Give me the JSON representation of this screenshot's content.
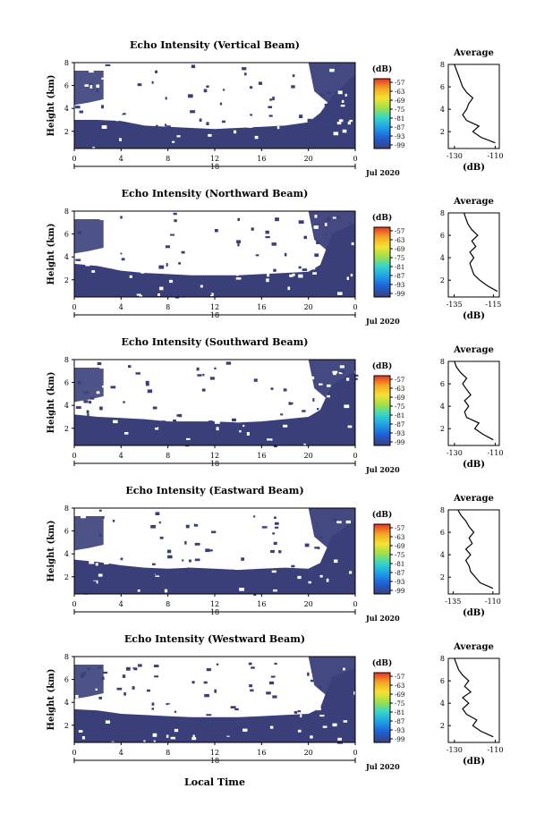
{
  "figure": {
    "xlabel": "Local Time",
    "date_label": "Jul 2020",
    "colorbar_unit": "(dB)",
    "colorbar_ticks": [
      "-57",
      "-63",
      "-69",
      "-75",
      "-81",
      "-87",
      "-93",
      "-99"
    ],
    "profile_title": "Average",
    "profile_xlabel": "(dB)",
    "colors": {
      "fill": "#3a3f7a",
      "colorbar": [
        "#e8322a",
        "#f5a623",
        "#f5e232",
        "#9fe04a",
        "#35d6c8",
        "#1fa1e8",
        "#1f5fd6",
        "#3a3f7a"
      ]
    }
  },
  "chart_data": [
    {
      "type": "heatmap",
      "title": "Echo Intensity (Vertical Beam)",
      "ylabel": "Height (km)",
      "x_ticks": [
        "0",
        "4",
        "8",
        "12",
        "16",
        "20",
        "0"
      ],
      "day_label": "18",
      "y_ticks": [
        "2",
        "4",
        "6",
        "8"
      ],
      "xlim": [
        0,
        24
      ],
      "ylim": [
        0.5,
        8
      ],
      "boundary": {
        "time": [
          0,
          2,
          4,
          6,
          8,
          10,
          12,
          14,
          16,
          18,
          20,
          21,
          22,
          24
        ],
        "height": [
          3.0,
          3.0,
          2.9,
          2.5,
          2.4,
          2.3,
          2.2,
          2.3,
          2.4,
          2.5,
          2.8,
          3.6,
          5.0,
          7.0
        ]
      },
      "profile": {
        "xticks": [
          "-130",
          "-110"
        ],
        "xlim": [
          -133,
          -108
        ],
        "height": [
          1.0,
          1.5,
          2.0,
          2.5,
          3.0,
          3.5,
          4.0,
          4.5,
          5.0,
          5.5,
          6.0,
          6.5,
          7.0,
          7.5,
          8.0
        ],
        "value": [
          -110,
          -117,
          -121,
          -118,
          -124,
          -126,
          -124,
          -123,
          -121,
          -124,
          -126,
          -127,
          -128,
          -129,
          -130
        ]
      }
    },
    {
      "type": "heatmap",
      "title": "Echo Intensity (Northward Beam)",
      "ylabel": "Height (km)",
      "x_ticks": [
        "0",
        "4",
        "8",
        "12",
        "16",
        "20",
        "0"
      ],
      "day_label": "18",
      "y_ticks": [
        "2",
        "4",
        "6",
        "8"
      ],
      "xlim": [
        0,
        24
      ],
      "ylim": [
        0.5,
        8
      ],
      "boundary": {
        "time": [
          0,
          2,
          4,
          6,
          8,
          10,
          12,
          14,
          16,
          18,
          20,
          21,
          22,
          24
        ],
        "height": [
          3.4,
          3.2,
          2.8,
          2.6,
          2.5,
          2.4,
          2.4,
          2.4,
          2.5,
          2.6,
          2.7,
          3.3,
          6.0,
          7.0
        ]
      },
      "profile": {
        "xticks": [
          "-135",
          "-115"
        ],
        "xlim": [
          -138,
          -112
        ],
        "height": [
          1.0,
          1.5,
          2.0,
          2.5,
          3.0,
          3.5,
          4.0,
          4.5,
          5.0,
          5.5,
          6.0,
          6.5,
          7.0,
          7.5,
          8.0
        ],
        "value": [
          -113,
          -118,
          -122,
          -125,
          -126,
          -127,
          -125,
          -127,
          -124,
          -126,
          -123,
          -126,
          -128,
          -129,
          -130
        ]
      }
    },
    {
      "type": "heatmap",
      "title": "Echo Intensity (Southward Beam)",
      "ylabel": "Height (km)",
      "x_ticks": [
        "0",
        "4",
        "8",
        "12",
        "16",
        "20",
        "0"
      ],
      "day_label": "18",
      "y_ticks": [
        "2",
        "4",
        "6",
        "8"
      ],
      "xlim": [
        0,
        24
      ],
      "ylim": [
        0.5,
        8
      ],
      "boundary": {
        "time": [
          0,
          2,
          4,
          6,
          8,
          10,
          12,
          14,
          16,
          18,
          20,
          21,
          22,
          24
        ],
        "height": [
          3.2,
          3.0,
          2.9,
          2.8,
          2.6,
          2.6,
          2.6,
          2.5,
          2.6,
          2.8,
          3.0,
          3.6,
          5.8,
          7.0
        ]
      },
      "profile": {
        "xticks": [
          "-130",
          "-110"
        ],
        "xlim": [
          -133,
          -108
        ],
        "height": [
          1.0,
          1.5,
          2.0,
          2.5,
          3.0,
          3.5,
          4.0,
          4.5,
          5.0,
          5.5,
          6.0,
          6.5,
          7.0,
          7.5,
          8.0
        ],
        "value": [
          -111,
          -116,
          -120,
          -118,
          -124,
          -125,
          -123,
          -125,
          -122,
          -124,
          -126,
          -124,
          -127,
          -129,
          -130
        ]
      }
    },
    {
      "type": "heatmap",
      "title": "Echo Intensity (Eastward Beam)",
      "ylabel": "Height (km)",
      "x_ticks": [
        "0",
        "4",
        "8",
        "12",
        "16",
        "20",
        "0"
      ],
      "day_label": "18",
      "y_ticks": [
        "2",
        "4",
        "6",
        "8"
      ],
      "xlim": [
        0,
        24
      ],
      "ylim": [
        0.5,
        8
      ],
      "boundary": {
        "time": [
          0,
          2,
          4,
          6,
          8,
          10,
          12,
          14,
          16,
          18,
          20,
          21,
          22,
          24
        ],
        "height": [
          3.5,
          3.3,
          3.0,
          2.8,
          2.7,
          2.8,
          2.7,
          2.6,
          2.7,
          2.8,
          2.7,
          3.2,
          5.5,
          7.0
        ]
      },
      "profile": {
        "xticks": [
          "-135",
          "-110"
        ],
        "xlim": [
          -138,
          -106
        ],
        "height": [
          1.0,
          1.5,
          2.0,
          2.5,
          3.0,
          3.5,
          4.0,
          4.5,
          5.0,
          5.5,
          6.0,
          6.5,
          7.0,
          7.5,
          8.0
        ],
        "value": [
          -110,
          -118,
          -121,
          -124,
          -125,
          -127,
          -124,
          -127,
          -123,
          -125,
          -122,
          -125,
          -127,
          -130,
          -132
        ]
      }
    },
    {
      "type": "heatmap",
      "title": "Echo Intensity (Westward Beam)",
      "ylabel": "Height (km)",
      "x_ticks": [
        "0",
        "4",
        "8",
        "12",
        "16",
        "20",
        "0"
      ],
      "day_label": "18",
      "y_ticks": [
        "2",
        "4",
        "6",
        "8"
      ],
      "xlim": [
        0,
        24
      ],
      "ylim": [
        0.5,
        8
      ],
      "boundary": {
        "time": [
          0,
          2,
          4,
          6,
          8,
          10,
          12,
          14,
          16,
          18,
          20,
          21,
          22,
          24
        ],
        "height": [
          3.4,
          3.3,
          3.0,
          2.9,
          2.8,
          2.7,
          2.7,
          2.7,
          2.8,
          2.9,
          3.0,
          3.5,
          6.2,
          7.0
        ]
      },
      "profile": {
        "xticks": [
          "-130",
          "-110"
        ],
        "xlim": [
          -133,
          -108
        ],
        "height": [
          1.0,
          1.5,
          2.0,
          2.5,
          3.0,
          3.5,
          4.0,
          4.5,
          5.0,
          5.5,
          6.0,
          6.5,
          7.0,
          7.5,
          8.0
        ],
        "value": [
          -111,
          -117,
          -121,
          -119,
          -124,
          -126,
          -123,
          -126,
          -122,
          -125,
          -123,
          -126,
          -128,
          -129,
          -130
        ]
      }
    }
  ]
}
